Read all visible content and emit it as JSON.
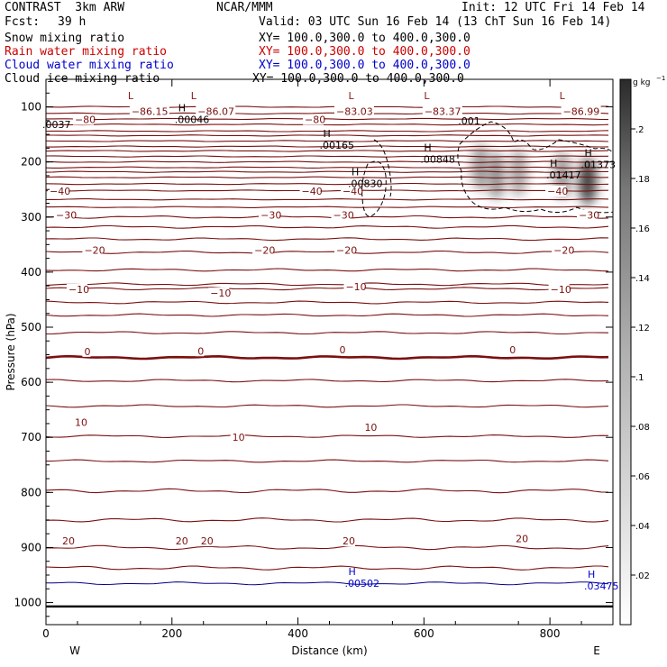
{
  "header": {
    "left_title": "CONTRAST  3km ARW",
    "center_title": "NCAR/MMM",
    "init": "Init: 12 UTC Fri 14 Feb 14",
    "fcst_label": "Fcst:",
    "fcst_value": "39 h",
    "valid": "Valid: 03 UTC Sun 16 Feb 14 (13 ChT Sun 16 Feb 14)"
  },
  "fields": [
    {
      "label": "Snow mixing ratio",
      "xy": "XY= 100.0,300.0 to 400.0,300.0",
      "color": "#000000"
    },
    {
      "label": "Rain water mixing ratio",
      "xy": "XY= 100.0,300.0 to 400.0,300.0",
      "color": "#cc0000"
    },
    {
      "label": "Cloud water mixing ratio",
      "xy": "XY= 100.0,300.0 to 400.0,300.0",
      "color": "#0000cc"
    },
    {
      "label": "Cloud ice mixing ratio",
      "xy": "XY= 100.0,300.0 to 400.0,300.0",
      "color": "#000000"
    }
  ],
  "chart_data": {
    "type": "heatmap",
    "xlabel": "Distance (km)",
    "ylabel": "Pressure (hPa)",
    "xlim": [
      0,
      900
    ],
    "ylim": [
      1040,
      50
    ],
    "x_ticks": [
      0,
      200,
      400,
      600,
      800
    ],
    "y_ticks": [
      100,
      200,
      300,
      400,
      500,
      600,
      700,
      800,
      900,
      1000
    ],
    "x_end_labels": {
      "left": "W",
      "right": "E"
    },
    "colorbar": {
      "unit": "g kg",
      "unit_exp": "−1",
      "ticks": [
        ".02",
        ".04",
        ".06",
        ".08",
        ".1",
        ".12",
        ".14",
        ".16",
        ".18",
        ".2"
      ],
      "range": [
        0,
        0.22
      ]
    },
    "temperature_contour_labels": [
      {
        "text": "−86.15",
        "x": 130,
        "p": 108
      },
      {
        "text": "−86.07",
        "x": 235,
        "p": 108
      },
      {
        "text": "−83.03",
        "x": 455,
        "p": 108
      },
      {
        "text": "−83.37",
        "x": 595,
        "p": 108
      },
      {
        "text": "−86.99",
        "x": 815,
        "p": 108
      },
      {
        "text": "−80",
        "x": 40,
        "p": 123
      },
      {
        "text": "−80",
        "x": 405,
        "p": 123
      },
      {
        "text": "−40",
        "x": 0,
        "p": 253
      },
      {
        "text": "−40",
        "x": 400,
        "p": 253
      },
      {
        "text": "−40",
        "x": 465,
        "p": 253
      },
      {
        "text": "−40",
        "x": 790,
        "p": 253
      },
      {
        "text": "−30",
        "x": 10,
        "p": 296
      },
      {
        "text": "−30",
        "x": 335,
        "p": 296
      },
      {
        "text": "−30",
        "x": 450,
        "p": 296
      },
      {
        "text": "−30",
        "x": 840,
        "p": 296
      },
      {
        "text": "−20",
        "x": 55,
        "p": 360
      },
      {
        "text": "−20",
        "x": 325,
        "p": 360
      },
      {
        "text": "−20",
        "x": 455,
        "p": 360
      },
      {
        "text": "−20",
        "x": 800,
        "p": 360
      },
      {
        "text": "−10",
        "x": 30,
        "p": 431
      },
      {
        "text": "−10",
        "x": 255,
        "p": 438
      },
      {
        "text": "−10",
        "x": 470,
        "p": 426
      },
      {
        "text": "−10",
        "x": 795,
        "p": 431
      },
      {
        "text": "0",
        "x": 55,
        "p": 544
      },
      {
        "text": "0",
        "x": 235,
        "p": 543
      },
      {
        "text": "0",
        "x": 460,
        "p": 541
      },
      {
        "text": "0",
        "x": 730,
        "p": 541
      },
      {
        "text": "10",
        "x": 40,
        "p": 673
      },
      {
        "text": "10",
        "x": 290,
        "p": 700
      },
      {
        "text": "10",
        "x": 500,
        "p": 682
      },
      {
        "text": "20",
        "x": 20,
        "p": 888
      },
      {
        "text": "20",
        "x": 200,
        "p": 888
      },
      {
        "text": "20",
        "x": 240,
        "p": 888
      },
      {
        "text": "20",
        "x": 465,
        "p": 888
      },
      {
        "text": "20",
        "x": 740,
        "p": 884
      }
    ],
    "extrema": [
      {
        "mark": "L",
        "x": 130,
        "p": 86,
        "color": "#8b1a1a"
      },
      {
        "mark": "L",
        "x": 230,
        "p": 86,
        "color": "#8b1a1a"
      },
      {
        "mark": "L",
        "x": 480,
        "p": 86,
        "color": "#8b1a1a"
      },
      {
        "mark": "L",
        "x": 600,
        "p": 86,
        "color": "#8b1a1a"
      },
      {
        "mark": "L",
        "x": 815,
        "p": 86,
        "color": "#8b1a1a"
      },
      {
        "mark": "H",
        "value": ".00046",
        "x": 210,
        "p": 108,
        "color": "#000000"
      },
      {
        "mark": "H",
        "value": ".00165",
        "x": 440,
        "p": 155,
        "color": "#000000"
      },
      {
        "mark": "H",
        "value": ".00848",
        "x": 600,
        "p": 180,
        "color": "#000000"
      },
      {
        "mark": "H",
        "value": ".00830",
        "x": 485,
        "p": 224,
        "color": "#000000"
      },
      {
        "mark": "H",
        "value": ".01417",
        "x": 800,
        "p": 209,
        "color": "#000000"
      },
      {
        "mark": "H",
        "value": ".01373",
        "x": 855,
        "p": 190,
        "color": "#000000"
      },
      {
        "mark": "",
        "value": ".0037",
        "x": 0,
        "p": 138,
        "color": "#000000"
      },
      {
        "mark": "",
        "value": ".001",
        "x": 660,
        "p": 132,
        "color": "#000000"
      },
      {
        "mark": "H",
        "value": ".00502",
        "x": 480,
        "p": 950,
        "color": "#0000cc"
      },
      {
        "mark": "H",
        "value": ".03475",
        "x": 860,
        "p": 955,
        "color": "#0000cc"
      }
    ],
    "shading_cores": [
      {
        "x": 690,
        "p": 210,
        "value": 0.09
      },
      {
        "x": 715,
        "p": 225,
        "value": 0.1
      },
      {
        "x": 750,
        "p": 220,
        "value": 0.08
      },
      {
        "x": 820,
        "p": 225,
        "value": 0.09
      },
      {
        "x": 860,
        "p": 235,
        "value": 0.19
      }
    ],
    "surface_p": 1007,
    "grid": false
  }
}
